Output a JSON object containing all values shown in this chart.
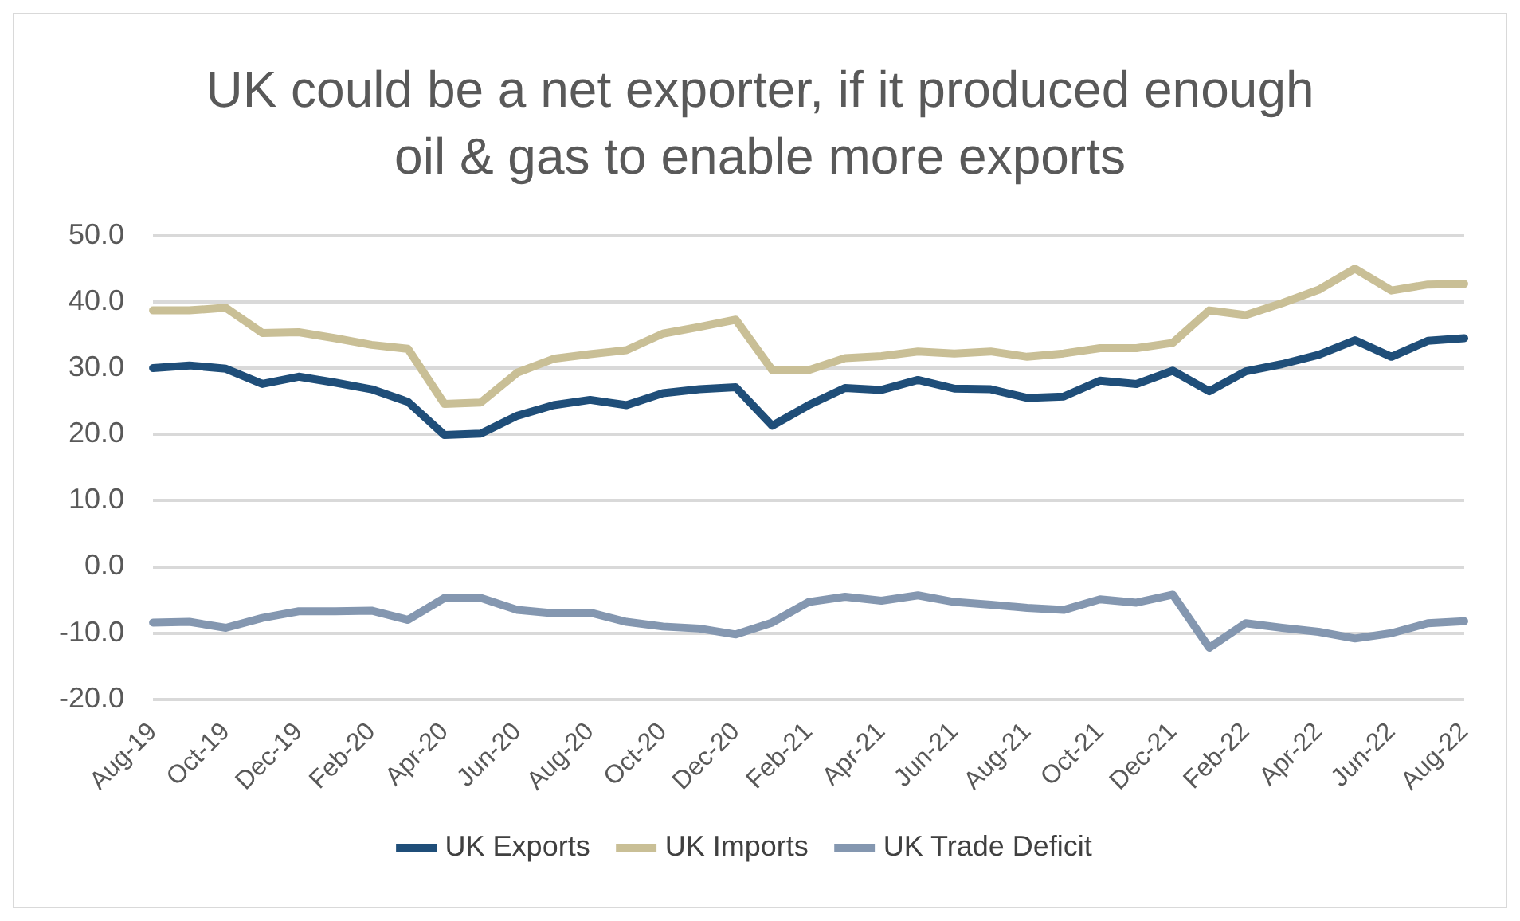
{
  "chart_data": {
    "type": "line",
    "title": "UK could be a net exporter, if it produced enough oil & gas to enable more exports",
    "categories": [
      "Aug-19",
      null,
      "Oct-19",
      null,
      "Dec-19",
      null,
      "Feb-20",
      null,
      "Apr-20",
      null,
      "Jun-20",
      null,
      "Aug-20",
      null,
      "Oct-20",
      null,
      "Dec-20",
      null,
      "Feb-21",
      null,
      "Apr-21",
      null,
      "Jun-21",
      null,
      "Aug-21",
      null,
      "Oct-21",
      null,
      "Dec-21",
      null,
      "Feb-22",
      null,
      "Apr-22",
      null,
      "Jun-22",
      null,
      "Aug-22"
    ],
    "series": [
      {
        "name": "UK Exports",
        "color": "#1f4e79",
        "values": [
          30.0,
          30.4,
          29.9,
          27.6,
          28.7,
          27.8,
          26.8,
          24.9,
          19.9,
          20.1,
          22.8,
          24.4,
          25.2,
          24.4,
          26.2,
          26.8,
          27.1,
          21.3,
          24.4,
          27.0,
          26.7,
          28.2,
          26.9,
          26.8,
          25.5,
          25.7,
          28.1,
          27.6,
          29.6,
          26.5,
          29.5,
          30.6,
          32.0,
          34.2,
          31.7,
          34.1,
          34.5
        ]
      },
      {
        "name": "UK Imports",
        "color": "#c9bf96",
        "values": [
          38.7,
          38.7,
          39.1,
          35.3,
          35.4,
          34.5,
          33.5,
          32.9,
          24.6,
          24.8,
          29.3,
          31.4,
          32.1,
          32.7,
          35.2,
          36.2,
          37.3,
          29.7,
          29.7,
          31.5,
          31.8,
          32.5,
          32.2,
          32.5,
          31.7,
          32.2,
          33.0,
          33.0,
          33.8,
          38.7,
          38.0,
          39.8,
          41.8,
          45.0,
          41.7,
          42.6,
          42.7
        ]
      },
      {
        "name": "UK Trade Deficit",
        "color": "#8497b0",
        "values": [
          -8.4,
          -8.3,
          -9.2,
          -7.7,
          -6.7,
          -6.7,
          -6.6,
          -8.0,
          -4.7,
          -4.7,
          -6.5,
          -7.0,
          -6.9,
          -8.3,
          -9.0,
          -9.3,
          -10.2,
          -8.4,
          -5.3,
          -4.5,
          -5.1,
          -4.3,
          -5.3,
          -5.7,
          -6.2,
          -6.5,
          -4.9,
          -5.4,
          -4.2,
          -12.2,
          -8.5,
          -9.2,
          -9.8,
          -10.8,
          -10.0,
          -8.5,
          -8.2
        ]
      }
    ],
    "ylim": [
      -20,
      50
    ],
    "yticks": [
      {
        "value": -20,
        "label": "-20.0"
      },
      {
        "value": -10,
        "label": "-10.0"
      },
      {
        "value": 0,
        "label": "0.0"
      },
      {
        "value": 10,
        "label": "10.0"
      },
      {
        "value": 20,
        "label": "20.0"
      },
      {
        "value": 30,
        "label": "30.0"
      },
      {
        "value": 40,
        "label": "40.0"
      },
      {
        "value": 50,
        "label": "50.0"
      }
    ],
    "grid": "y",
    "legend": "bottom",
    "marker": "none",
    "line_style": "solid"
  }
}
